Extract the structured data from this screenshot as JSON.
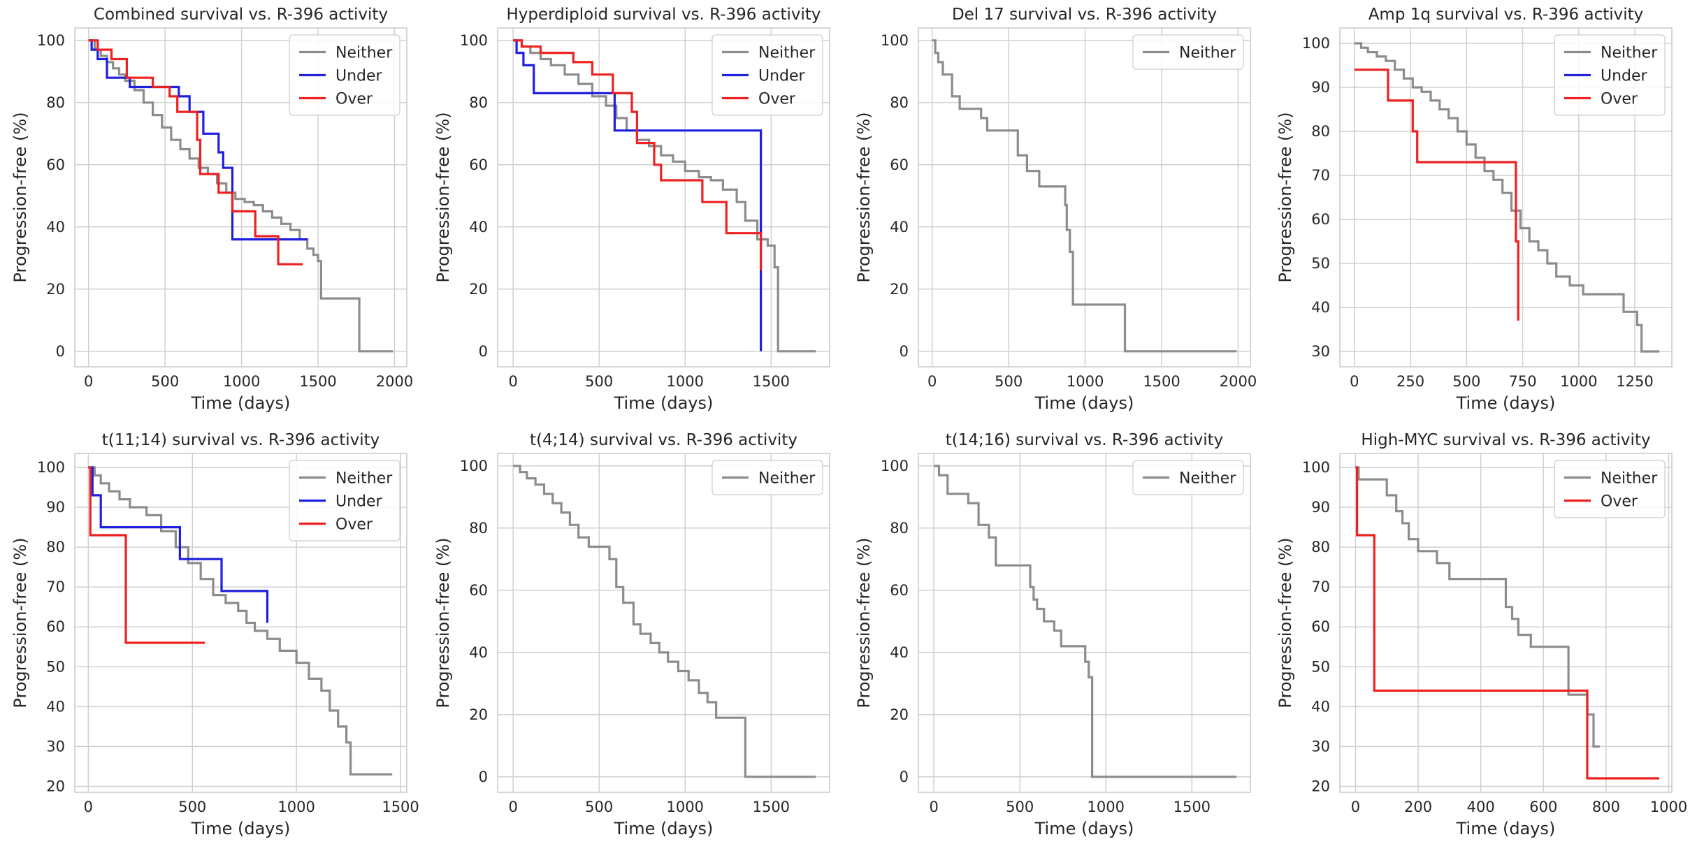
{
  "colors": {
    "Neither": "#8c8c8c",
    "Under": "#1f1fe0",
    "Over": "#ee2020"
  },
  "chart_data": [
    {
      "type": "line",
      "step": "post",
      "title": "Combined survival vs. R-396 activity",
      "xlabel": "Time (days)",
      "ylabel": "Progression-free (%)",
      "xlim": [
        -90,
        2080
      ],
      "ylim": [
        -5,
        104
      ],
      "xticks": [
        0,
        500,
        1000,
        1500,
        2000
      ],
      "yticks": [
        0,
        20,
        40,
        60,
        80,
        100
      ],
      "grid": true,
      "legend_position": "top-right",
      "series": [
        {
          "name": "Neither",
          "x": [
            0,
            40,
            80,
            120,
            160,
            200,
            240,
            300,
            360,
            420,
            480,
            540,
            600,
            660,
            720,
            780,
            840,
            900,
            960,
            1020,
            1080,
            1140,
            1200,
            1260,
            1320,
            1380,
            1430,
            1470,
            1500,
            1520,
            1760,
            1770,
            1990
          ],
          "y": [
            100,
            97,
            95,
            93,
            91,
            89,
            87,
            84,
            80,
            76,
            72,
            68,
            65,
            62,
            59,
            57,
            54,
            51,
            49,
            48,
            47,
            45,
            43,
            41,
            39,
            36,
            33,
            31,
            29,
            17,
            17,
            0,
            0
          ]
        },
        {
          "name": "Under",
          "x": [
            0,
            20,
            60,
            120,
            270,
            450,
            590,
            660,
            750,
            850,
            880,
            940,
            1430
          ],
          "y": [
            100,
            97,
            94,
            88,
            85,
            85,
            82,
            77,
            70,
            64,
            59,
            36,
            36
          ]
        },
        {
          "name": "Over",
          "x": [
            0,
            60,
            150,
            250,
            420,
            530,
            580,
            710,
            730,
            850,
            940,
            990,
            1090,
            1240,
            1400
          ],
          "y": [
            100,
            97,
            94,
            88,
            85,
            82,
            77,
            68,
            57,
            51,
            45,
            45,
            37,
            28,
            28
          ]
        }
      ]
    },
    {
      "type": "line",
      "step": "post",
      "title": "Hyperdiploid survival vs. R-396 activity",
      "xlabel": "Time (days)",
      "ylabel": "Progression-free (%)",
      "xlim": [
        -90,
        1840
      ],
      "ylim": [
        -5,
        104
      ],
      "xticks": [
        0,
        500,
        1000,
        1500
      ],
      "yticks": [
        0,
        20,
        40,
        60,
        80,
        100
      ],
      "grid": true,
      "legend_position": "top-right",
      "series": [
        {
          "name": "Neither",
          "x": [
            0,
            50,
            100,
            160,
            220,
            300,
            380,
            460,
            540,
            600,
            660,
            720,
            790,
            860,
            930,
            1000,
            1080,
            1150,
            1220,
            1300,
            1350,
            1420,
            1480,
            1520,
            1540,
            1760
          ],
          "y": [
            100,
            98,
            96,
            94,
            92,
            89,
            86,
            82,
            79,
            75,
            71,
            68,
            66,
            63,
            61,
            58,
            56,
            55,
            52,
            48,
            42,
            36,
            34,
            27,
            0,
            0
          ]
        },
        {
          "name": "Under",
          "x": [
            0,
            20,
            60,
            120,
            590,
            1440
          ],
          "y": [
            100,
            96,
            92,
            83,
            71,
            0
          ]
        },
        {
          "name": "Over",
          "x": [
            0,
            50,
            160,
            350,
            460,
            580,
            690,
            720,
            820,
            860,
            1100,
            1240,
            1440
          ],
          "y": [
            100,
            98,
            96,
            93,
            89,
            83,
            77,
            67,
            60,
            55,
            48,
            38,
            26
          ]
        }
      ]
    },
    {
      "type": "line",
      "step": "post",
      "title": "Del 17 survival vs. R-396 activity",
      "xlabel": "Time (days)",
      "ylabel": "Progression-free (%)",
      "xlim": [
        -90,
        2080
      ],
      "ylim": [
        -5,
        104
      ],
      "xticks": [
        0,
        500,
        1000,
        1500,
        2000
      ],
      "yticks": [
        0,
        20,
        40,
        60,
        80,
        100
      ],
      "grid": true,
      "legend_position": "top-right",
      "series": [
        {
          "name": "Neither",
          "x": [
            0,
            20,
            40,
            70,
            130,
            180,
            320,
            360,
            560,
            620,
            700,
            870,
            880,
            900,
            920,
            1260,
            1990
          ],
          "y": [
            100,
            96,
            93,
            89,
            82,
            78,
            75,
            71,
            63,
            58,
            53,
            47,
            39,
            32,
            15,
            0,
            0
          ]
        }
      ]
    },
    {
      "type": "line",
      "step": "post",
      "title": "Amp 1q survival vs. R-396 activity",
      "xlabel": "Time (days)",
      "ylabel": "Progression-free (%)",
      "xlim": [
        -65,
        1415
      ],
      "ylim": [
        26.5,
        103.5
      ],
      "xticks": [
        0,
        250,
        500,
        750,
        1000,
        1250
      ],
      "yticks": [
        30,
        40,
        50,
        60,
        70,
        80,
        90,
        100
      ],
      "grid": true,
      "legend_position": "top-right",
      "series": [
        {
          "name": "Neither",
          "x": [
            0,
            30,
            60,
            100,
            140,
            180,
            220,
            260,
            300,
            340,
            380,
            420,
            460,
            500,
            540,
            580,
            620,
            660,
            700,
            740,
            780,
            820,
            860,
            900,
            960,
            1020,
            1100,
            1200,
            1260,
            1280,
            1360
          ],
          "y": [
            100,
            99,
            98,
            97,
            96,
            94,
            92,
            90,
            89,
            87,
            85,
            83,
            80,
            77,
            74,
            71,
            69,
            66,
            62,
            58,
            55,
            53,
            50,
            47,
            45,
            43,
            43,
            39,
            36,
            30,
            30
          ]
        },
        {
          "name": "Under",
          "x": [],
          "y": []
        },
        {
          "name": "Over",
          "x": [
            0,
            150,
            260,
            280,
            720,
            730
          ],
          "y": [
            94,
            87,
            80,
            73,
            55,
            37
          ]
        }
      ]
    },
    {
      "type": "line",
      "step": "post",
      "title": "t(11;14) survival vs. R-396 activity",
      "xlabel": "Time (days)",
      "ylabel": "Progression-free (%)",
      "xlim": [
        -65,
        1530
      ],
      "ylim": [
        18.5,
        103.5
      ],
      "xticks": [
        0,
        500,
        1000,
        1500
      ],
      "yticks": [
        20,
        30,
        40,
        50,
        60,
        70,
        80,
        90,
        100
      ],
      "grid": true,
      "legend_position": "top-right",
      "series": [
        {
          "name": "Neither",
          "x": [
            0,
            30,
            60,
            100,
            150,
            200,
            280,
            350,
            420,
            480,
            540,
            600,
            660,
            720,
            760,
            800,
            860,
            920,
            1000,
            1060,
            1120,
            1160,
            1200,
            1240,
            1260,
            1460
          ],
          "y": [
            100,
            98,
            96,
            94,
            92,
            90,
            88,
            84,
            80,
            76,
            72,
            68,
            66,
            64,
            61,
            59,
            57,
            54,
            51,
            47,
            44,
            39,
            35,
            31,
            23,
            23
          ]
        },
        {
          "name": "Under",
          "x": [
            0,
            20,
            60,
            280,
            440,
            640,
            860
          ],
          "y": [
            100,
            93,
            85,
            85,
            77,
            69,
            61
          ]
        },
        {
          "name": "Over",
          "x": [
            0,
            10,
            180,
            560
          ],
          "y": [
            100,
            83,
            56,
            56
          ]
        }
      ]
    },
    {
      "type": "line",
      "step": "post",
      "title": "t(4;14) survival vs. R-396 activity",
      "xlabel": "Time (days)",
      "ylabel": "Progression-free (%)",
      "xlim": [
        -90,
        1840
      ],
      "ylim": [
        -5,
        104
      ],
      "xticks": [
        0,
        500,
        1000,
        1500
      ],
      "yticks": [
        0,
        20,
        40,
        60,
        80,
        100
      ],
      "grid": true,
      "legend_position": "top-right",
      "series": [
        {
          "name": "Neither",
          "x": [
            0,
            40,
            80,
            130,
            180,
            230,
            280,
            330,
            380,
            440,
            500,
            560,
            600,
            640,
            700,
            740,
            800,
            850,
            900,
            960,
            1020,
            1080,
            1130,
            1180,
            1350,
            1760
          ],
          "y": [
            100,
            98,
            96,
            94,
            91,
            88,
            85,
            81,
            77,
            74,
            74,
            70,
            61,
            56,
            49,
            46,
            43,
            40,
            37,
            34,
            31,
            27,
            24,
            19,
            0,
            0
          ]
        }
      ]
    },
    {
      "type": "line",
      "step": "post",
      "title": "t(14;16) survival vs. R-396 activity",
      "xlabel": "Time (days)",
      "ylabel": "Progression-free (%)",
      "xlim": [
        -90,
        1840
      ],
      "ylim": [
        -5,
        104
      ],
      "xticks": [
        0,
        500,
        1000,
        1500
      ],
      "yticks": [
        0,
        20,
        40,
        60,
        80,
        100
      ],
      "grid": true,
      "legend_position": "top-right",
      "series": [
        {
          "name": "Neither",
          "x": [
            0,
            30,
            80,
            200,
            260,
            320,
            360,
            560,
            580,
            600,
            640,
            700,
            740,
            880,
            900,
            920,
            1760
          ],
          "y": [
            100,
            97,
            91,
            88,
            81,
            77,
            68,
            61,
            57,
            54,
            50,
            47,
            42,
            37,
            32,
            0,
            0
          ]
        }
      ]
    },
    {
      "type": "line",
      "step": "post",
      "title": "High-MYC survival vs. R-396 activity",
      "xlabel": "Time (days)",
      "ylabel": "Progression-free (%)",
      "xlim": [
        -50,
        1010
      ],
      "ylim": [
        18.5,
        103.5
      ],
      "xticks": [
        0,
        200,
        400,
        600,
        800,
        1000
      ],
      "yticks": [
        20,
        30,
        40,
        50,
        60,
        70,
        80,
        90,
        100
      ],
      "grid": true,
      "legend_position": "top-right",
      "series": [
        {
          "name": "Neither",
          "x": [
            0,
            10,
            100,
            130,
            150,
            170,
            200,
            260,
            300,
            480,
            500,
            520,
            560,
            680,
            740,
            760,
            780
          ],
          "y": [
            100,
            97,
            93,
            89,
            86,
            82,
            79,
            76,
            72,
            65,
            62,
            58,
            55,
            43,
            38,
            30,
            30
          ]
        },
        {
          "name": "Over",
          "x": [
            0,
            5,
            60,
            730,
            740,
            970
          ],
          "y": [
            100,
            83,
            44,
            44,
            22,
            22
          ]
        }
      ]
    }
  ]
}
